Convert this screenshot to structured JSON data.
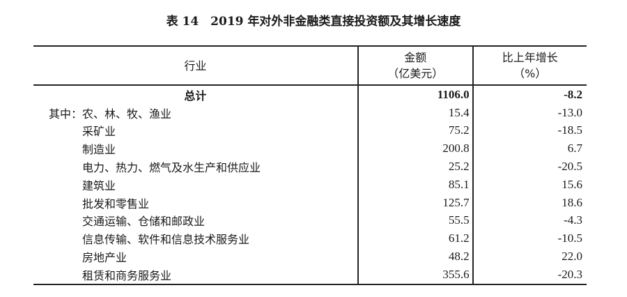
{
  "title": "表 14　2019 年对外非金融类直接投资额及其增长速度",
  "headers": {
    "industry": "行业",
    "amount": "金额",
    "amount_unit": "（亿美元）",
    "growth": "比上年增长",
    "growth_unit": "（%）"
  },
  "rows": [
    {
      "label": "总计",
      "amount": "1106.0",
      "growth": "-8.2"
    },
    {
      "label": "其中：农、林、牧、渔业",
      "amount": "15.4",
      "growth": "-13.0"
    },
    {
      "label": "采矿业",
      "amount": "75.2",
      "growth": "-18.5"
    },
    {
      "label": "制造业",
      "amount": "200.8",
      "growth": "6.7"
    },
    {
      "label": "电力、热力、燃气及水生产和供应业",
      "amount": "25.2",
      "growth": "-20.5"
    },
    {
      "label": "建筑业",
      "amount": "85.1",
      "growth": "15.6"
    },
    {
      "label": "批发和零售业",
      "amount": "125.7",
      "growth": "18.6"
    },
    {
      "label": "交通运输、仓储和邮政业",
      "amount": "55.5",
      "growth": "-4.3"
    },
    {
      "label": "信息传输、软件和信息技术服务业",
      "amount": "61.2",
      "growth": "-10.5"
    },
    {
      "label": "房地产业",
      "amount": "48.2",
      "growth": "22.0"
    },
    {
      "label": "租赁和商务服务业",
      "amount": "355.6",
      "growth": "-20.3"
    }
  ]
}
